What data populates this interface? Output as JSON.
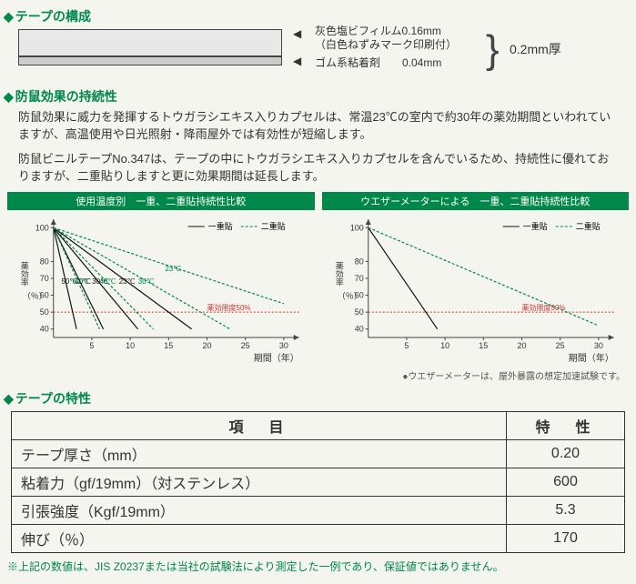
{
  "s1": {
    "title": "テープの構成",
    "layer1a": "灰色塩ビフィルム0.16mm",
    "layer1b": "（白色ねずみマーク印刷付）",
    "layer2": "ゴム系粘着剤　　0.04mm",
    "thick": "0.2mm厚"
  },
  "s2": {
    "title": "防鼠効果の持続性",
    "p1": "防鼠効果に威力を発揮するトウガラシエキス入りカプセルは、常温23℃の室内で約30年の薬効期間といわれていますが、高温使用や日光照射・降雨屋外では有効性が短縮します。",
    "p2": "防鼠ビニルテープNo.347は、テープの中にトウガラシエキス入りカプセルを含んでいるため、持続性に優れておりますが、二重貼りしますと更に効果期間は延長します。"
  },
  "chartA": {
    "title": "使用温度別　一重、二重貼持続性比較",
    "legend1": "一重貼",
    "legend2": "二重貼",
    "ylabel": "薬効率",
    "yunit": "（％）",
    "xlabel": "期間（年）",
    "yticks": [
      40,
      50,
      60,
      70,
      80,
      100
    ],
    "xticks": [
      5,
      10,
      15,
      20,
      25,
      30
    ],
    "threshold_label": "薬効限度50%",
    "threshold_y": 50,
    "colors": {
      "axis": "#444",
      "single": "#111",
      "double": "#00874a",
      "thresh": "#c33",
      "grid": "#e0e0e0",
      "bg": "#fff"
    },
    "series_single": [
      {
        "label": "50℃",
        "pts": [
          [
            0,
            100
          ],
          [
            3,
            40
          ]
        ]
      },
      {
        "label": "40℃",
        "pts": [
          [
            0,
            100
          ],
          [
            6.5,
            40
          ]
        ]
      },
      {
        "label": "30℃",
        "pts": [
          [
            0,
            100
          ],
          [
            11,
            40
          ]
        ]
      },
      {
        "label": "23℃",
        "pts": [
          [
            0,
            100
          ],
          [
            18,
            40
          ]
        ]
      }
    ],
    "series_double": [
      {
        "label": "50℃",
        "pts": [
          [
            0,
            100
          ],
          [
            6,
            40
          ]
        ]
      },
      {
        "label": "40℃",
        "pts": [
          [
            0,
            100
          ],
          [
            13,
            40
          ]
        ]
      },
      {
        "label": "30℃",
        "pts": [
          [
            0,
            100
          ],
          [
            23,
            40
          ]
        ]
      },
      {
        "label": "23℃",
        "pts": [
          [
            0,
            100
          ],
          [
            30,
            55
          ]
        ]
      }
    ]
  },
  "chartB": {
    "title": "ウエザーメーターによる　一重、二重貼持続性比較",
    "legend1": "一重貼",
    "legend2": "二重貼",
    "ylabel": "薬効率",
    "yunit": "（％）",
    "xlabel": "期間（年）",
    "yticks": [
      40,
      50,
      60,
      70,
      80,
      100
    ],
    "xticks": [
      5,
      10,
      15,
      20,
      25,
      30
    ],
    "threshold_label": "薬効限度50%",
    "threshold_y": 50,
    "colors": {
      "axis": "#444",
      "single": "#111",
      "double": "#00874a",
      "thresh": "#c33",
      "grid": "#e0e0e0",
      "bg": "#fff"
    },
    "series_single": [
      {
        "label": "",
        "pts": [
          [
            0,
            100
          ],
          [
            9,
            40
          ]
        ]
      }
    ],
    "series_double": [
      {
        "label": "",
        "pts": [
          [
            0,
            100
          ],
          [
            30,
            42
          ]
        ]
      }
    ]
  },
  "chart_note": "●ウエザーメーターは、屋外暴露の想定加速試験です。",
  "s3": {
    "title": "テープの特性",
    "head_item": "項　目",
    "head_val": "特　性",
    "rows": [
      [
        "テープ厚さ（mm）",
        "0.20"
      ],
      [
        "粘着力（gf/19mm）（対ステンレス）",
        "600"
      ],
      [
        "引張強度（Kgf/19mm）",
        "5.3"
      ],
      [
        "伸び（％）",
        "170"
      ]
    ]
  },
  "footnote": "上記の数値は、JIS Z0237または当社の試験法により測定した一例であり、保証値ではありません。"
}
